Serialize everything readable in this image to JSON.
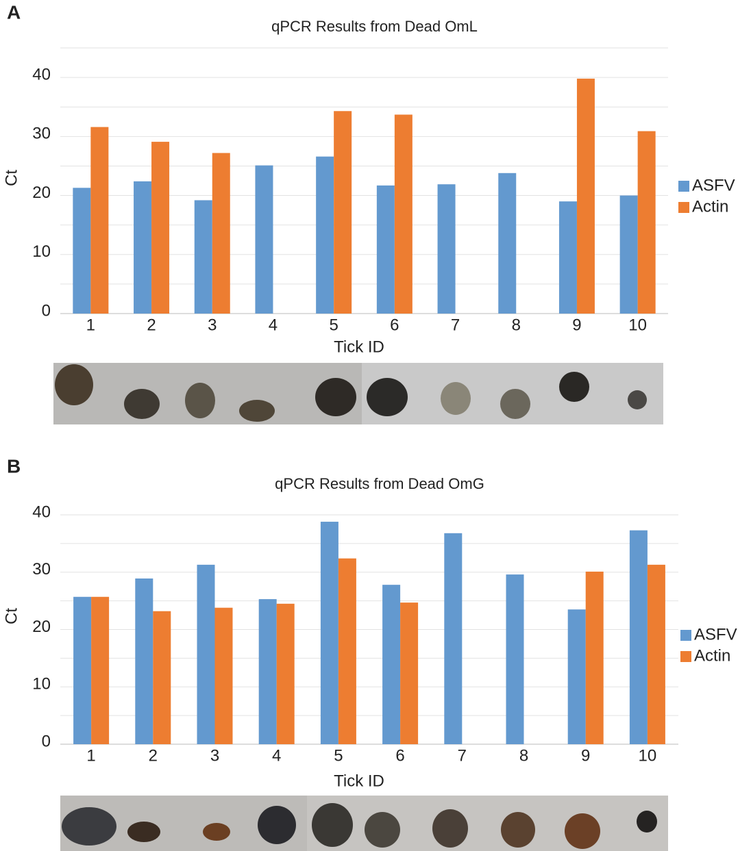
{
  "chart_data": [
    {
      "type": "bar",
      "label": "A",
      "title": "qPCR Results from Dead OmL",
      "x_label": "Tick ID",
      "y_label": "Ct",
      "categories": [
        "1",
        "2",
        "3",
        "4",
        "5",
        "6",
        "7",
        "8",
        "9",
        "10"
      ],
      "series": [
        {
          "name": "ASFV",
          "color": "#6399cf",
          "values": [
            21.3,
            22.4,
            19.2,
            25.1,
            26.6,
            21.7,
            21.9,
            23.8,
            19.0,
            20.0
          ]
        },
        {
          "name": "Actin",
          "color": "#ed7d31",
          "values": [
            31.6,
            29.1,
            27.2,
            null,
            34.3,
            33.7,
            null,
            null,
            39.8,
            30.9
          ]
        }
      ],
      "ylim": [
        0,
        45
      ],
      "yticks": [
        0,
        10,
        20,
        30,
        40
      ],
      "ygrid_minor": [
        5,
        15,
        25,
        35,
        45
      ],
      "grid": true,
      "legend": "right"
    },
    {
      "type": "bar",
      "label": "B",
      "title": "qPCR Results from Dead OmG",
      "x_label": "Tick ID",
      "y_label": "Ct",
      "categories": [
        "1",
        "2",
        "3",
        "4",
        "5",
        "6",
        "7",
        "8",
        "9",
        "10"
      ],
      "series": [
        {
          "name": "ASFV",
          "color": "#6399cf",
          "values": [
            25.7,
            28.9,
            31.3,
            25.3,
            38.8,
            27.8,
            36.8,
            29.6,
            23.5,
            37.3
          ]
        },
        {
          "name": "Actin",
          "color": "#ed7d31",
          "values": [
            25.7,
            23.2,
            23.8,
            24.5,
            32.4,
            24.7,
            null,
            null,
            30.1,
            31.3
          ]
        }
      ],
      "ylim": [
        0,
        40
      ],
      "yticks": [
        0,
        10,
        20,
        30,
        40
      ],
      "ygrid_minor": [
        5,
        15,
        25,
        35
      ],
      "grid": true,
      "legend": "right"
    }
  ]
}
